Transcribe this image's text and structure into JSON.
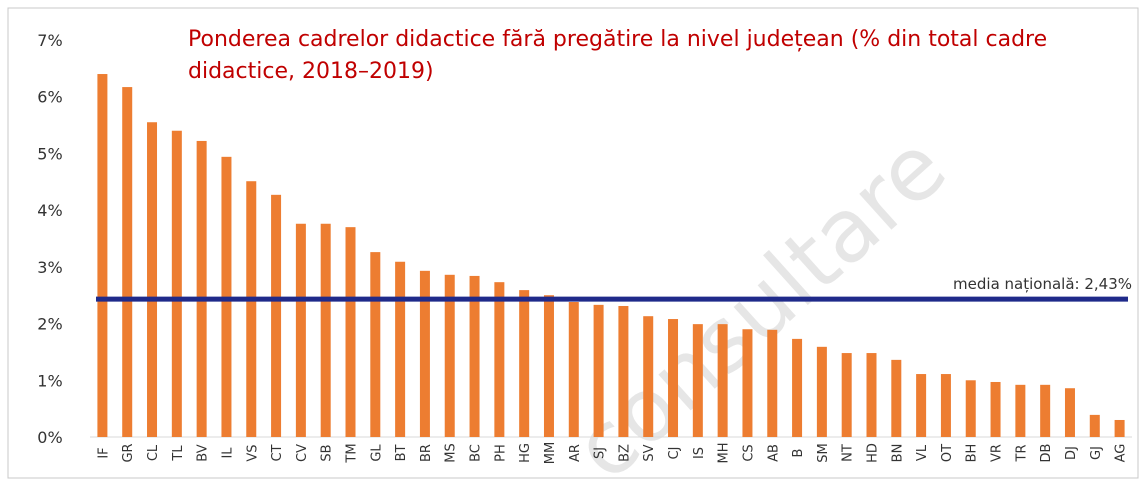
{
  "chart_data": {
    "type": "bar",
    "title": "Ponderea cadrelor didactice fără pregătire la nivel județean (% din total cadre didactice, 2018–2019)",
    "categories": [
      "IF",
      "GR",
      "CL",
      "TL",
      "BV",
      "IL",
      "VS",
      "CT",
      "CV",
      "SB",
      "TM",
      "GL",
      "BT",
      "BR",
      "MS",
      "BC",
      "PH",
      "HG",
      "MM",
      "AR",
      "SJ",
      "BZ",
      "SV",
      "CJ",
      "IS",
      "MH",
      "CS",
      "AB",
      "B",
      "SM",
      "NT",
      "HD",
      "BN",
      "VL",
      "OT",
      "BH",
      "VR",
      "TR",
      "DB",
      "DJ",
      "GJ",
      "AG"
    ],
    "values": [
      6.4,
      6.17,
      5.55,
      5.4,
      5.22,
      4.94,
      4.51,
      4.27,
      3.76,
      3.76,
      3.7,
      3.26,
      3.09,
      2.93,
      2.86,
      2.84,
      2.73,
      2.59,
      2.5,
      2.38,
      2.33,
      2.31,
      2.13,
      2.08,
      1.99,
      1.99,
      1.9,
      1.89,
      1.73,
      1.59,
      1.48,
      1.48,
      1.36,
      1.11,
      1.11,
      1.0,
      0.97,
      0.92,
      0.92,
      0.86,
      0.39,
      0.3
    ],
    "color": "#ed7d31",
    "ylim": [
      0,
      7
    ],
    "yticks": [
      {
        "value": 0,
        "label": "0%"
      },
      {
        "value": 1,
        "label": "1%"
      },
      {
        "value": 2,
        "label": "2%"
      },
      {
        "value": 3,
        "label": "3%"
      },
      {
        "value": 4,
        "label": "4%"
      },
      {
        "value": 5,
        "label": "5%"
      },
      {
        "value": 6,
        "label": "6%"
      },
      {
        "value": 7,
        "label": "7%"
      }
    ],
    "grid": false,
    "reference_line": {
      "value": 2.43,
      "label": "media națională: 2,43%",
      "color": "#1f2a8a"
    },
    "watermark": "consultare"
  }
}
